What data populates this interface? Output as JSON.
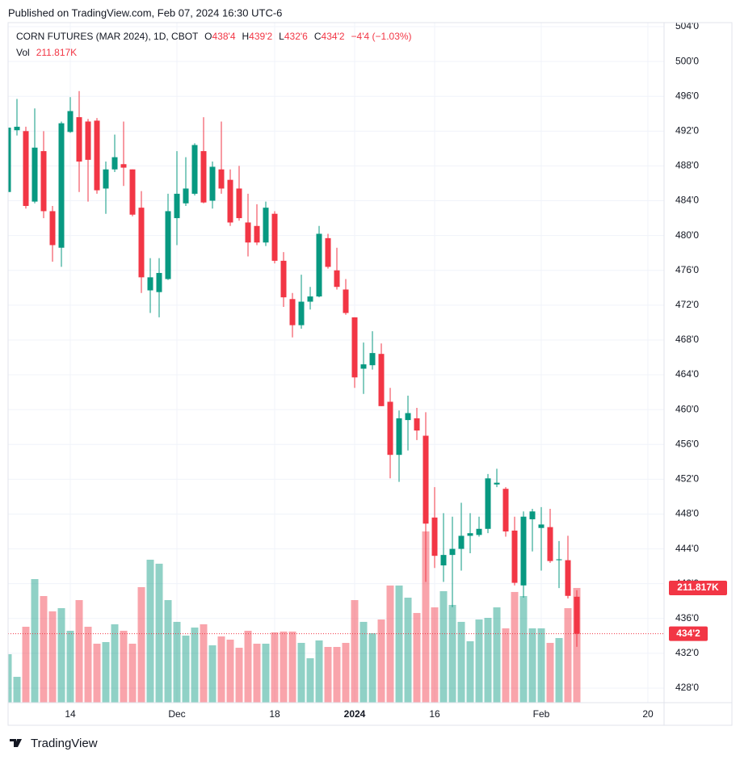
{
  "chart_data": {
    "type": "candlestick",
    "published": "Published on TradingView.com, Feb 07, 2024 16:30 UTC-6",
    "brand": "TradingView",
    "header": {
      "symbol": "CORN FUTURES (MAR 2024), 1D, CBOT",
      "open_label": "O",
      "open": "438'4",
      "high_label": "H",
      "high": "439'2",
      "low_label": "L",
      "low": "432'6",
      "close_label": "C",
      "close": "434'2",
      "change": "−4'4 (−1.03%)"
    },
    "up_color": "#089981",
    "down_color": "#f23645",
    "categories": [
      null,
      null,
      null,
      null,
      null,
      null,
      null,
      "14",
      null,
      null,
      null,
      null,
      null,
      null,
      null,
      null,
      null,
      null,
      null,
      "Dec",
      null,
      null,
      null,
      null,
      null,
      null,
      null,
      null,
      null,
      null,
      "18",
      null,
      null,
      null,
      null,
      null,
      null,
      null,
      null,
      "2024",
      null,
      null,
      null,
      null,
      null,
      null,
      null,
      null,
      "16",
      null,
      null,
      null,
      null,
      null,
      null,
      null,
      null,
      null,
      null,
      null,
      "Feb",
      null,
      null,
      null,
      null,
      null,
      null,
      null,
      null,
      null,
      null,
      null,
      "20"
    ],
    "price": {
      "open": [
        485,
        492.1,
        492,
        483.9,
        489.7,
        482.8,
        478.6,
        491.9,
        493.6,
        493.1,
        493.2,
        485.4,
        487.6,
        488.2,
        487.6,
        483.2,
        473.7,
        473.5,
        475,
        482,
        483.7,
        484.8,
        489.7,
        484,
        487.6,
        486.4,
        485.4,
        481.5,
        481.1,
        479.2,
        482.5,
        477.1,
        472.7,
        469.7,
        472.4,
        473,
        479.7,
        476,
        473.8,
        470.6,
        464.7,
        465.1,
        466.4,
        460.9,
        454.8,
        458.8,
        459,
        457,
        447.6,
        442.1,
        443.3,
        444,
        445.5,
        445.6,
        446.3,
        451.4,
        450.9,
        446.1,
        439.8,
        447.4,
        446.4,
        446.5,
        442.7,
        442.7,
        438.5,
        null,
        null,
        null,
        null,
        null,
        null,
        null,
        null
      ],
      "high": [
        493,
        495.7,
        492.5,
        494.6,
        492,
        483.4,
        493.1,
        495.9,
        496.6,
        493.4,
        493.5,
        488.5,
        491.6,
        493.1,
        487.6,
        485.1,
        477.4,
        477.4,
        484.8,
        489.7,
        489,
        490.6,
        493.6,
        488.5,
        493.1,
        487.6,
        488,
        484.8,
        483.6,
        483.9,
        482.8,
        478.1,
        473.4,
        475.5,
        474.1,
        481.1,
        480.2,
        478.6,
        475,
        470.6,
        467.7,
        469,
        467.6,
        462.5,
        459.9,
        461.6,
        460.2,
        459.7,
        451.1,
        448.1,
        447.7,
        449.3,
        448.1,
        447.7,
        452.6,
        453.2,
        451.1,
        447.7,
        448.3,
        448.6,
        448.8,
        448.6,
        444.9,
        445.5,
        439.25,
        null,
        null,
        null,
        null,
        null,
        null,
        null,
        null
      ],
      "low": [
        484.5,
        491.5,
        483.1,
        483.7,
        482,
        477,
        476.4,
        491.8,
        485,
        483.9,
        484.8,
        482.5,
        487.3,
        485.7,
        482.2,
        473.4,
        471.1,
        470.6,
        474.9,
        478.9,
        483.4,
        484.6,
        483.7,
        483.1,
        484.8,
        481.1,
        481.7,
        477.6,
        478.9,
        478.8,
        476.8,
        471.8,
        468.3,
        469.3,
        471.5,
        472.9,
        476.2,
        473.8,
        470.9,
        462.5,
        461.8,
        464.6,
        460.4,
        452.1,
        451.7,
        455.3,
        456.5,
        440.2,
        441.8,
        440.2,
        437.3,
        441.5,
        443.5,
        445.4,
        445.8,
        451.1,
        445.4,
        439.8,
        438.4,
        443.7,
        441.5,
        442.4,
        439.5,
        438.3,
        432.75,
        null,
        null,
        null,
        null,
        null,
        null,
        null,
        null
      ],
      "close": [
        492.4,
        492.5,
        483.4,
        490.1,
        482.8,
        478.9,
        492.9,
        494.3,
        488.5,
        488.7,
        485.2,
        487.6,
        489,
        487.8,
        482.4,
        475.2,
        475.2,
        475.7,
        482.8,
        484.8,
        485.4,
        490.4,
        483.8,
        487.9,
        485.4,
        481.5,
        482,
        479.2,
        479.2,
        483.2,
        477.1,
        472.9,
        469.7,
        472.4,
        473,
        480.2,
        476.4,
        474.1,
        471.1,
        463.7,
        465.2,
        466.5,
        460.4,
        454.8,
        459,
        459.6,
        457.6,
        446.9,
        443.2,
        443.3,
        444,
        445.5,
        445.8,
        446.3,
        452.1,
        451.6,
        446,
        440.1,
        447.7,
        448.3,
        446.8,
        442.6,
        442.8,
        438.6,
        434.25,
        null,
        null,
        null,
        null,
        null,
        null,
        null,
        null
      ],
      "value_labels": [
        null,
        null,
        null,
        null,
        null,
        null,
        null,
        null,
        null,
        null,
        null,
        null,
        null,
        null,
        null,
        null,
        null,
        null,
        null,
        null,
        null,
        null,
        null,
        null,
        null,
        null,
        null,
        null,
        null,
        null,
        null,
        null,
        null,
        null,
        null,
        null,
        null,
        null,
        null,
        null,
        null,
        null,
        null,
        null,
        null,
        null,
        null,
        null,
        null,
        null,
        null,
        null,
        null,
        null,
        null,
        null,
        null,
        null,
        null,
        null,
        null,
        null,
        null,
        null,
        "434'2",
        null,
        null,
        null,
        null,
        null,
        null,
        null,
        null
      ]
    },
    "volume": {
      "name": "Vol",
      "values": [
        89500,
        47700,
        140200,
        228200,
        196900,
        168600,
        174500,
        132800,
        189400,
        140200,
        108900,
        111900,
        144700,
        132800,
        108900,
        213300,
        264000,
        256600,
        189400,
        149200,
        123800,
        138700,
        144700,
        105900,
        122300,
        116400,
        101400,
        132800,
        108900,
        108900,
        129800,
        131300,
        131300,
        110400,
        82000,
        114900,
        102900,
        102900,
        110400,
        189400,
        149200,
        128300,
        153600,
        216300,
        216300,
        193900,
        165600,
        316200,
        176000,
        205900,
        180500,
        149200,
        113400,
        153600,
        156600,
        176000,
        137200,
        204400,
        196900,
        137200,
        137200,
        110400,
        119300,
        174500,
        211817,
        null,
        null,
        null,
        null,
        null,
        null,
        null,
        null
      ],
      "value_labels": [
        null,
        null,
        null,
        null,
        null,
        null,
        null,
        null,
        null,
        null,
        null,
        null,
        null,
        null,
        null,
        null,
        null,
        null,
        null,
        null,
        null,
        null,
        null,
        null,
        null,
        null,
        null,
        null,
        null,
        null,
        null,
        null,
        null,
        null,
        null,
        null,
        null,
        null,
        null,
        null,
        null,
        null,
        null,
        null,
        null,
        null,
        null,
        null,
        null,
        null,
        null,
        null,
        null,
        null,
        null,
        null,
        null,
        null,
        null,
        null,
        null,
        null,
        null,
        null,
        "211.817K",
        null,
        null,
        null,
        null,
        null,
        null,
        null,
        null
      ]
    },
    "ylim": [
      428,
      504
    ],
    "yticks": [
      {
        "value": 428,
        "label": "428'0"
      },
      {
        "value": 432,
        "label": "432'0"
      },
      {
        "value": 436,
        "label": "436'0"
      },
      {
        "value": 440,
        "label": "440'0"
      },
      {
        "value": 444,
        "label": "444'0"
      },
      {
        "value": 448,
        "label": "448'0"
      },
      {
        "value": 452,
        "label": "452'0"
      },
      {
        "value": 456,
        "label": "456'0"
      },
      {
        "value": 460,
        "label": "460'0"
      },
      {
        "value": 464,
        "label": "464'0"
      },
      {
        "value": 468,
        "label": "468'0"
      },
      {
        "value": 472,
        "label": "472'0"
      },
      {
        "value": 476,
        "label": "476'0"
      },
      {
        "value": 480,
        "label": "480'0"
      },
      {
        "value": 484,
        "label": "484'0"
      },
      {
        "value": 488,
        "label": "488'0"
      },
      {
        "value": 492,
        "label": "492'0"
      },
      {
        "value": 496,
        "label": "496'0"
      },
      {
        "value": 500,
        "label": "500'0"
      },
      {
        "value": 504,
        "label": "504'0"
      }
    ],
    "grid": true
  }
}
